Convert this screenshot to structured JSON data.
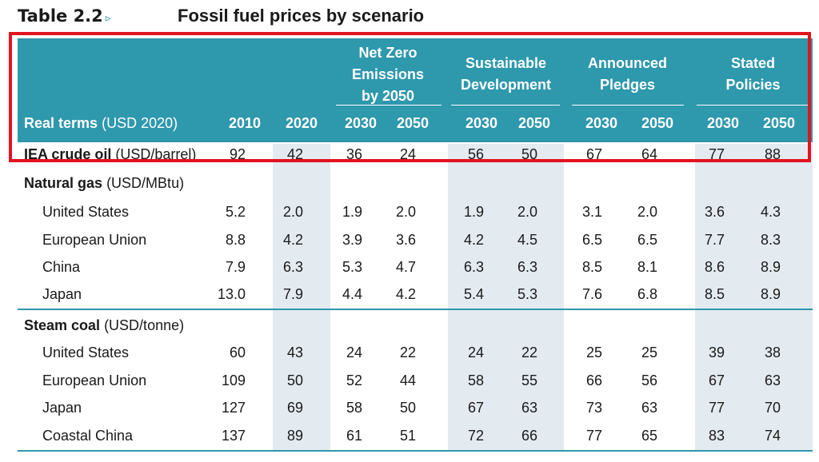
{
  "title": {
    "number": "Table 2.2",
    "marker": "▹",
    "text": "Fossil fuel prices by scenario"
  },
  "header": {
    "real_terms_bold": "Real terms",
    "real_terms_unit": "(USD 2020)",
    "groups": [
      {
        "label_lines": [
          "Net Zero",
          "Emissions",
          "by 2050"
        ]
      },
      {
        "label_lines": [
          "Sustainable",
          "Development"
        ]
      },
      {
        "label_lines": [
          "Announced",
          "Pledges"
        ]
      },
      {
        "label_lines": [
          "Stated",
          "Policies"
        ]
      }
    ],
    "years": [
      "2010",
      "2020",
      "2030",
      "2050",
      "2030",
      "2050",
      "2030",
      "2050",
      "2030",
      "2050"
    ]
  },
  "rows": [
    {
      "label": "IEA crude oil",
      "unit": "(USD/barrel)",
      "kind": "main",
      "values": [
        "92",
        "42",
        "36",
        "24",
        "56",
        "50",
        "67",
        "64",
        "77",
        "88"
      ]
    },
    {
      "label": "Natural gas",
      "unit": "(USD/MBtu)",
      "kind": "section",
      "values": []
    },
    {
      "label": "United States",
      "kind": "sub",
      "values": [
        "5.2",
        "2.0",
        "1.9",
        "2.0",
        "1.9",
        "2.0",
        "3.1",
        "2.0",
        "3.6",
        "4.3"
      ]
    },
    {
      "label": "European Union",
      "kind": "sub",
      "values": [
        "8.8",
        "4.2",
        "3.9",
        "3.6",
        "4.2",
        "4.5",
        "6.5",
        "6.5",
        "7.7",
        "8.3"
      ]
    },
    {
      "label": "China",
      "kind": "sub",
      "values": [
        "7.9",
        "6.3",
        "5.3",
        "4.7",
        "6.3",
        "6.3",
        "8.5",
        "8.1",
        "8.6",
        "8.9"
      ]
    },
    {
      "label": "Japan",
      "kind": "sub",
      "values": [
        "13.0",
        "7.9",
        "4.4",
        "4.2",
        "5.4",
        "5.3",
        "7.6",
        "6.8",
        "8.5",
        "8.9"
      ]
    },
    {
      "label": "Steam coal",
      "unit": "(USD/tonne)",
      "kind": "section",
      "values": []
    },
    {
      "label": "United States",
      "kind": "sub",
      "values": [
        "60",
        "43",
        "24",
        "22",
        "24",
        "22",
        "25",
        "25",
        "39",
        "38"
      ]
    },
    {
      "label": "European Union",
      "kind": "sub",
      "values": [
        "109",
        "50",
        "52",
        "44",
        "58",
        "55",
        "66",
        "56",
        "67",
        "63"
      ]
    },
    {
      "label": "Japan",
      "kind": "sub",
      "values": [
        "127",
        "69",
        "58",
        "50",
        "67",
        "63",
        "73",
        "63",
        "77",
        "70"
      ]
    },
    {
      "label": "Coastal China",
      "kind": "sub",
      "values": [
        "137",
        "89",
        "61",
        "51",
        "72",
        "66",
        "77",
        "65",
        "83",
        "74"
      ]
    }
  ],
  "colors": {
    "header": "#2e98ad",
    "stripe": "#e3eaf0",
    "highlight_box": "#e3131f"
  }
}
